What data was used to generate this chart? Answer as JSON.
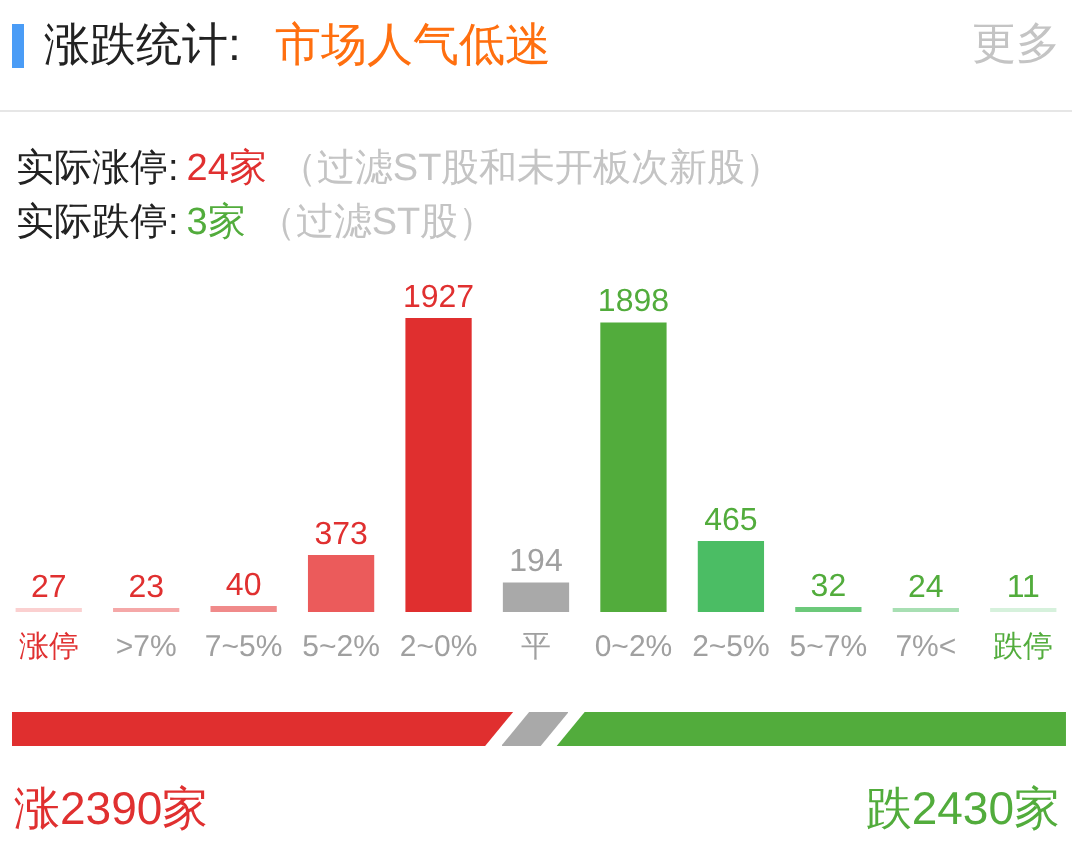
{
  "chart_data": {
    "type": "bar",
    "title": "涨跌统计:",
    "subtitle": "市场人气低迷",
    "categories": [
      "涨停",
      ">7%",
      "7~5%",
      "5~2%",
      "2~0%",
      "平",
      "0~2%",
      "2~5%",
      "5~7%",
      "7%<",
      "跌停"
    ],
    "values": [
      27,
      23,
      40,
      373,
      1927,
      194,
      1898,
      465,
      32,
      24,
      11
    ],
    "colors": [
      "#fbd0d0",
      "#f5a8a8",
      "#f08a8a",
      "#eb5b5b",
      "#e02f2f",
      "#a9a9a9",
      "#52ac3c",
      "#4bbd64",
      "#6cc97a",
      "#a8dfb3",
      "#d6f1dc"
    ],
    "data_labels": true,
    "tick_labels": "x",
    "grid": false,
    "legend": false,
    "annotations": [
      "更多",
      "实际涨停:",
      "24家",
      "（过滤ST股和未开板次新股）",
      "实际跌停:",
      "3家",
      "（过滤ST股）",
      "涨2390家",
      "跌2430家"
    ]
  }
}
